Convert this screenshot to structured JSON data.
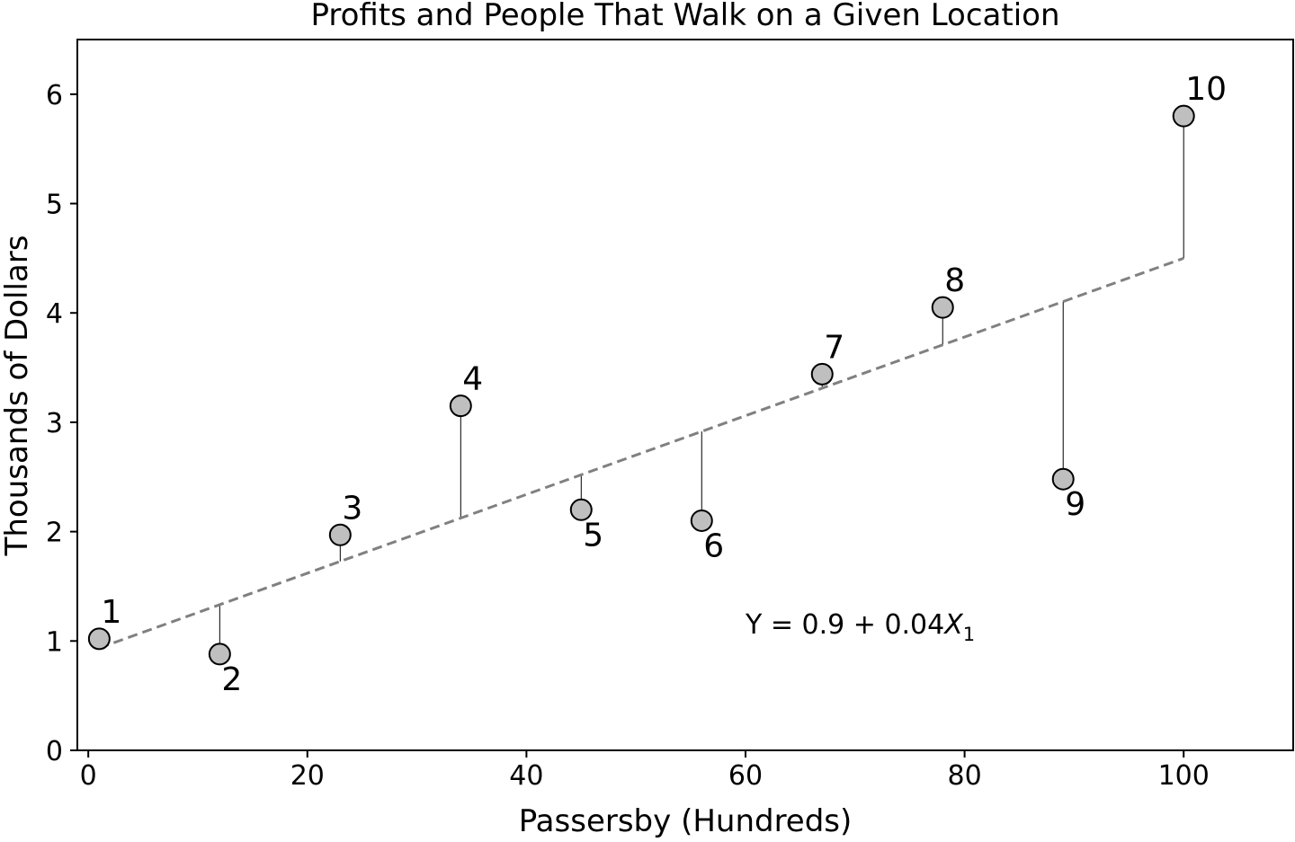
{
  "chart_data": {
    "type": "scatter",
    "title": "Profits and People That Walk on a Given Location",
    "xlabel": "Passersby (Hundreds)",
    "ylabel": "Thousands of Dollars",
    "xlim": [
      -1,
      110
    ],
    "ylim": [
      0,
      6.5
    ],
    "x_ticks": [
      0,
      20,
      40,
      60,
      80,
      100
    ],
    "y_ticks": [
      0,
      1,
      2,
      3,
      4,
      5,
      6
    ],
    "grid": false,
    "legend": "none",
    "points": [
      {
        "label": "1",
        "x": 1,
        "y": 1.02,
        "label_pos": "above"
      },
      {
        "label": "2",
        "x": 12,
        "y": 0.88,
        "label_pos": "below"
      },
      {
        "label": "3",
        "x": 23,
        "y": 1.97,
        "label_pos": "above"
      },
      {
        "label": "4",
        "x": 34,
        "y": 3.15,
        "label_pos": "above"
      },
      {
        "label": "5",
        "x": 45,
        "y": 2.2,
        "label_pos": "below"
      },
      {
        "label": "6",
        "x": 56,
        "y": 2.1,
        "label_pos": "below"
      },
      {
        "label": "7",
        "x": 67,
        "y": 3.44,
        "label_pos": "above"
      },
      {
        "label": "8",
        "x": 78,
        "y": 4.05,
        "label_pos": "above"
      },
      {
        "label": "9",
        "x": 89,
        "y": 2.48,
        "label_pos": "below"
      },
      {
        "label": "10",
        "x": 100,
        "y": 5.8,
        "label_pos": "above"
      }
    ],
    "fit_line": {
      "intercept": 0.9,
      "slope": 0.036,
      "x_range": [
        1,
        100
      ],
      "style": "dashed"
    },
    "annotation": {
      "text_main": "Y = 0.9 + 0.04",
      "var": "X",
      "sub": "1",
      "x": 60,
      "y": 1.07
    },
    "colors": {
      "marker_fill": "#bfbfbf",
      "marker_edge": "#000000",
      "fit_line": "#808080",
      "residual": "#000000"
    }
  }
}
